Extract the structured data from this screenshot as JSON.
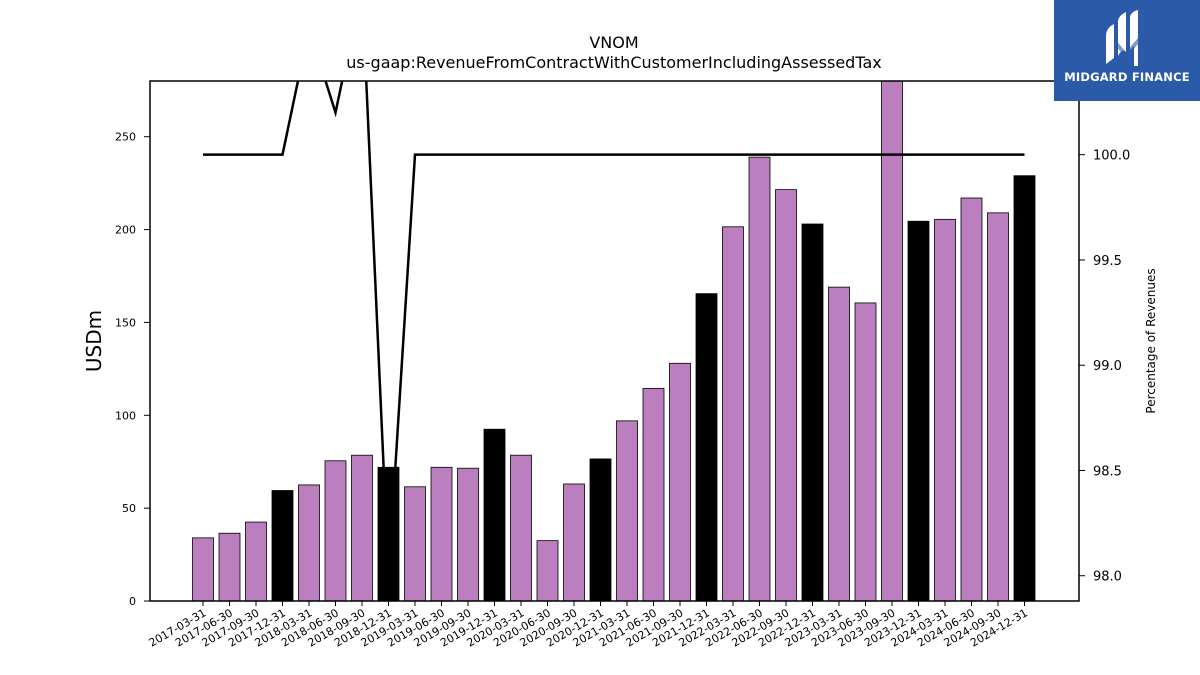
{
  "chart_data": {
    "type": "bar",
    "title": "VNOM",
    "subtitle": "us-gaap:RevenueFromContractWithCustomerIncludingAssessedTax",
    "ylabel": "USDm",
    "y2label": "Percentage of Revenues",
    "ylim": [
      0,
      280
    ],
    "y2lim": [
      97.88,
      100.35
    ],
    "yticks": [
      0,
      50,
      100,
      150,
      200,
      250
    ],
    "y2ticks": [
      98.0,
      98.5,
      99.0,
      99.5,
      100.0
    ],
    "categories": [
      "2017-03-31",
      "2017-06-30",
      "2017-09-30",
      "2017-12-31",
      "2018-03-31",
      "2018-06-30",
      "2018-09-30",
      "2018-12-31",
      "2019-03-31",
      "2019-06-30",
      "2019-09-30",
      "2019-12-31",
      "2020-03-31",
      "2020-06-30",
      "2020-09-30",
      "2020-12-31",
      "2021-03-31",
      "2021-06-30",
      "2021-09-30",
      "2021-12-31",
      "2022-03-31",
      "2022-06-30",
      "2022-09-30",
      "2022-12-31",
      "2023-03-31",
      "2023-06-30",
      "2023-09-30",
      "2023-12-31",
      "2024-03-31",
      "2024-06-30",
      "2024-09-30",
      "2024-12-31"
    ],
    "series": [
      {
        "type": "bar",
        "values": [
          34,
          36.5,
          42.5,
          59.5,
          62.5,
          75.5,
          78.5,
          72,
          61.5,
          72,
          71.5,
          92.5,
          78.5,
          32.5,
          63,
          76.5,
          97,
          114.5,
          128,
          165.5,
          201.5,
          239,
          221.5,
          203,
          169,
          160.5,
          282,
          204.5,
          205.5,
          217,
          209,
          229
        ],
        "colors": [
          "#bb7fbf",
          "#bb7fbf",
          "#bb7fbf",
          "#000000",
          "#bb7fbf",
          "#bb7fbf",
          "#bb7fbf",
          "#000000",
          "#bb7fbf",
          "#bb7fbf",
          "#bb7fbf",
          "#000000",
          "#bb7fbf",
          "#bb7fbf",
          "#bb7fbf",
          "#000000",
          "#bb7fbf",
          "#bb7fbf",
          "#bb7fbf",
          "#000000",
          "#bb7fbf",
          "#bb7fbf",
          "#bb7fbf",
          "#000000",
          "#bb7fbf",
          "#bb7fbf",
          "#bb7fbf",
          "#000000",
          "#bb7fbf",
          "#bb7fbf",
          "#bb7fbf",
          "#000000"
        ]
      },
      {
        "type": "line",
        "axis": "right",
        "values": [
          100.0,
          100.0,
          100.0,
          100.0,
          100.6,
          100.2,
          100.8,
          98.0,
          100.0,
          100.0,
          100.0,
          100.0,
          100.0,
          100.0,
          100.0,
          100.0,
          100.0,
          100.0,
          100.0,
          100.0,
          100.0,
          100.0,
          100.0,
          100.0,
          100.0,
          100.0,
          100.0,
          100.0,
          100.0,
          100.0,
          100.0,
          100.0
        ],
        "color": "#000000"
      }
    ],
    "bar_palette": {
      "quarter": "#bb7fbf",
      "year_end": "#000000"
    }
  },
  "logo": {
    "text": "MIDGARD FINANCE",
    "background": "#2b5aa8"
  }
}
